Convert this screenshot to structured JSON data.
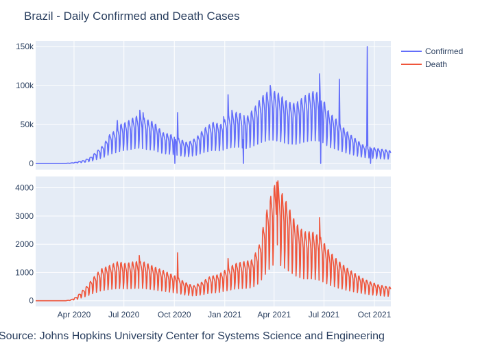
{
  "chart_data": {
    "type": "line",
    "title": "Brazil - Daily Confirmed and Death Cases",
    "source": "Source: Johns Hopkins University Center for Systems Science and Engineering",
    "x_tick_labels": [
      "Apr 2020",
      "Jul 2020",
      "Oct 2020",
      "Jan 2021",
      "Apr 2021",
      "Jul 2021",
      "Oct 2021"
    ],
    "x_tick_dates": [
      "2020-04-01",
      "2020-07-01",
      "2020-10-01",
      "2021-01-01",
      "2021-04-01",
      "2021-07-01",
      "2021-10-01"
    ],
    "x_range": [
      "2020-01-22",
      "2021-10-31"
    ],
    "colors": {
      "confirmed": "#636efa",
      "death": "#ef553b",
      "plot_bg": "#e5ecf6",
      "grid": "#ffffff",
      "text": "#2a3f5f"
    },
    "legend": {
      "placement": "top-right"
    },
    "panels": [
      {
        "series": [
          {
            "name": "Confirmed",
            "key": "confirmed",
            "points": [
              [
                "2020-01-22",
                0
              ],
              [
                "2020-03-01",
                0
              ],
              [
                "2020-03-15",
                50
              ],
              [
                "2020-03-25",
                300
              ],
              [
                "2020-04-05",
                1200
              ],
              [
                "2020-04-20",
                3000
              ],
              [
                "2020-05-01",
                6000
              ],
              [
                "2020-05-15",
                13000
              ],
              [
                "2020-05-25",
                18000
              ],
              [
                "2020-06-05",
                28000
              ],
              [
                "2020-06-15",
                32000
              ],
              [
                "2020-06-25",
                38000
              ],
              [
                "2020-07-05",
                40000
              ],
              [
                "2020-07-20",
                45000
              ],
              [
                "2020-07-30",
                47000
              ],
              [
                "2020-08-10",
                43000
              ],
              [
                "2020-08-25",
                40000
              ],
              [
                "2020-09-10",
                30000
              ],
              [
                "2020-09-25",
                28000
              ],
              [
                "2020-10-10",
                24000
              ],
              [
                "2020-10-25",
                20000
              ],
              [
                "2020-11-10",
                25000
              ],
              [
                "2020-11-25",
                34000
              ],
              [
                "2020-12-10",
                40000
              ],
              [
                "2020-12-25",
                38000
              ],
              [
                "2021-01-10",
                48000
              ],
              [
                "2021-01-25",
                50000
              ],
              [
                "2021-02-10",
                45000
              ],
              [
                "2021-02-25",
                55000
              ],
              [
                "2021-03-10",
                65000
              ],
              [
                "2021-03-25",
                72000
              ],
              [
                "2021-04-10",
                68000
              ],
              [
                "2021-04-25",
                60000
              ],
              [
                "2021-05-10",
                58000
              ],
              [
                "2021-05-25",
                65000
              ],
              [
                "2021-06-10",
                70000
              ],
              [
                "2021-06-25",
                68000
              ],
              [
                "2021-07-10",
                50000
              ],
              [
                "2021-07-25",
                42000
              ],
              [
                "2021-08-10",
                32000
              ],
              [
                "2021-08-25",
                25000
              ],
              [
                "2021-09-10",
                18000
              ],
              [
                "2021-09-25",
                16000
              ],
              [
                "2021-10-10",
                14000
              ],
              [
                "2021-10-25",
                13000
              ],
              [
                "2021-10-31",
                12000
              ]
            ],
            "spikes": [
              [
                "2020-06-19",
                55000
              ],
              [
                "2020-07-30",
                68000
              ],
              [
                "2020-08-05",
                65000
              ],
              [
                "2020-10-07",
                65000
              ],
              [
                "2020-10-02",
                0
              ],
              [
                "2020-12-30",
                60000
              ],
              [
                "2021-01-07",
                88000
              ],
              [
                "2021-01-14",
                68000
              ],
              [
                "2021-02-04",
                0
              ],
              [
                "2021-03-25",
                100000
              ],
              [
                "2021-06-23",
                115000
              ],
              [
                "2021-06-25",
                0
              ],
              [
                "2021-07-29",
                108000
              ],
              [
                "2021-09-18",
                150000
              ],
              [
                "2021-09-24",
                0
              ]
            ]
          }
        ],
        "y_ticks": [
          0,
          50000,
          100000,
          150000
        ],
        "y_tick_labels": [
          "0",
          "50k",
          "100k",
          "150k"
        ],
        "ylim": [
          -8000,
          157000
        ]
      },
      {
        "series": [
          {
            "name": "Death",
            "key": "death",
            "points": [
              [
                "2020-01-22",
                0
              ],
              [
                "2020-03-15",
                0
              ],
              [
                "2020-03-25",
                20
              ],
              [
                "2020-04-05",
                100
              ],
              [
                "2020-04-15",
                250
              ],
              [
                "2020-04-25",
                400
              ],
              [
                "2020-05-05",
                600
              ],
              [
                "2020-05-20",
                850
              ],
              [
                "2020-06-05",
                950
              ],
              [
                "2020-06-20",
                1050
              ],
              [
                "2020-07-05",
                1000
              ],
              [
                "2020-07-20",
                1050
              ],
              [
                "2020-08-05",
                1050
              ],
              [
                "2020-08-20",
                950
              ],
              [
                "2020-09-05",
                850
              ],
              [
                "2020-09-20",
                750
              ],
              [
                "2020-10-05",
                650
              ],
              [
                "2020-10-20",
                500
              ],
              [
                "2020-11-05",
                400
              ],
              [
                "2020-11-20",
                500
              ],
              [
                "2020-12-05",
                650
              ],
              [
                "2020-12-20",
                700
              ],
              [
                "2021-01-05",
                850
              ],
              [
                "2021-01-20",
                1000
              ],
              [
                "2021-02-05",
                1050
              ],
              [
                "2021-02-20",
                1100
              ],
              [
                "2021-03-05",
                1500
              ],
              [
                "2021-03-20",
                2500
              ],
              [
                "2021-04-01",
                3100
              ],
              [
                "2021-04-12",
                3000
              ],
              [
                "2021-04-25",
                2600
              ],
              [
                "2021-05-10",
                2100
              ],
              [
                "2021-05-25",
                1850
              ],
              [
                "2021-06-10",
                1850
              ],
              [
                "2021-06-25",
                1700
              ],
              [
                "2021-07-10",
                1350
              ],
              [
                "2021-07-25",
                1100
              ],
              [
                "2021-08-10",
                900
              ],
              [
                "2021-08-25",
                750
              ],
              [
                "2021-09-10",
                600
              ],
              [
                "2021-09-25",
                500
              ],
              [
                "2021-10-10",
                420
              ],
              [
                "2021-10-25",
                380
              ],
              [
                "2021-10-31",
                370
              ]
            ],
            "spikes": [
              [
                "2020-07-29",
                1600
              ],
              [
                "2020-10-07",
                1700
              ],
              [
                "2021-01-07",
                1500
              ],
              [
                "2021-04-06",
                4200
              ],
              [
                "2021-04-08",
                4250
              ],
              [
                "2021-06-23",
                2950
              ]
            ]
          }
        ],
        "y_ticks": [
          0,
          1000,
          2000,
          3000,
          4000
        ],
        "y_tick_labels": [
          "0",
          "1000",
          "2000",
          "3000",
          "4000"
        ],
        "ylim": [
          -200,
          4400
        ]
      }
    ]
  }
}
